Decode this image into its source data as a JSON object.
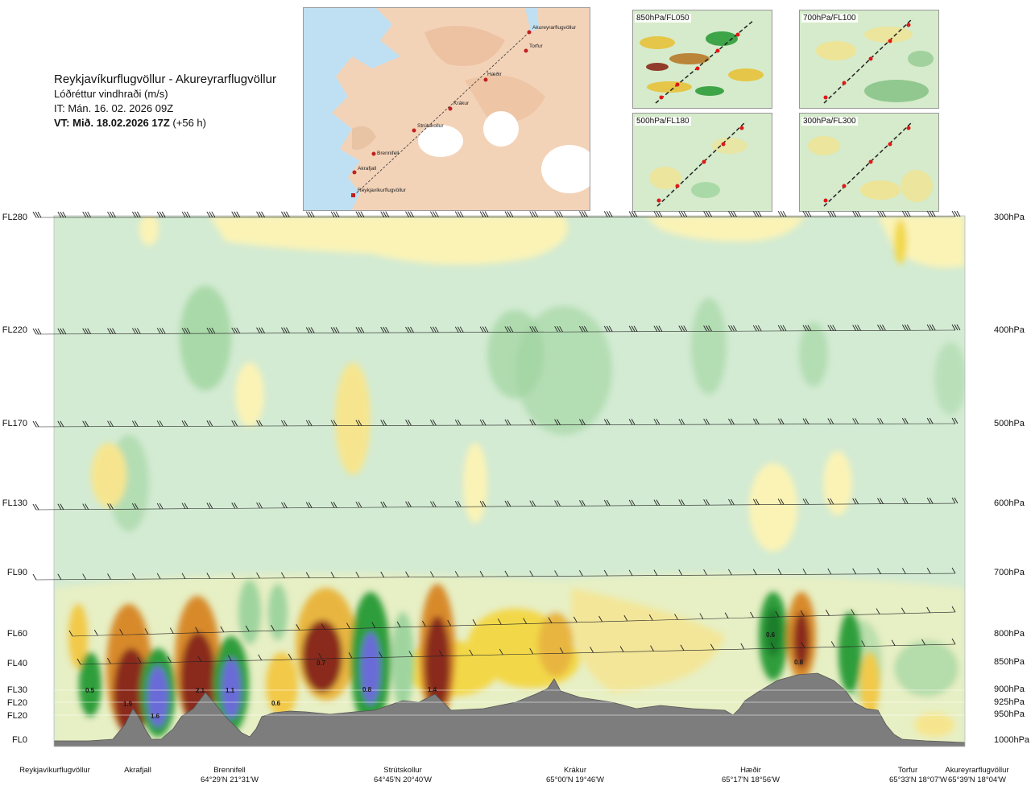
{
  "title": {
    "route": "Reykjavíkurflugvöllur - Akureyrarflugvöllur",
    "variable": "Lóðréttur vindhraði (m/s)",
    "issue": "IT: Mán. 16. 02. 2026 09Z",
    "valid": "VT: Mið. 18.02.2026 17Z",
    "valid_offset": "(+56 h)"
  },
  "map": {
    "waypoints": [
      "Akureyrarflugvöllur",
      "Torfur",
      "Hæðir",
      "Krákur",
      "Strútskollur",
      "Brennifell",
      "Akrafjall",
      "Reykjavíkurflugvöllur"
    ]
  },
  "panels": [
    {
      "label": "850hPa/FL050"
    },
    {
      "label": "700hPa/FL100"
    },
    {
      "label": "500hPa/FL180"
    },
    {
      "label": "300hPa/FL300"
    }
  ],
  "colors": {
    "green_light": "#d3ebd3",
    "green_mid": "#9fd49f",
    "green_dark": "#2e9d3a",
    "yellow_light": "#fbf3b6",
    "yellow": "#f2c94a",
    "orange": "#d88a2a",
    "brown": "#8a2a1a",
    "blue": "#6a6ad8",
    "terrain": "#7d7d7d"
  },
  "chart_data": {
    "type": "heatmap",
    "variable": "Lóðréttur vindhraði (m/s)",
    "flight_levels": [
      "FL280",
      "FL220",
      "FL170",
      "FL130",
      "FL90",
      "FL60",
      "FL40",
      "FL30",
      "FL20",
      "FL20",
      "FL0"
    ],
    "pressure_levels": [
      "300hPa",
      "400hPa",
      "500hPa",
      "600hPa",
      "700hPa",
      "800hPa",
      "850hPa",
      "900hPa",
      "925hPa",
      "950hPa",
      "1000hPa"
    ],
    "stations": [
      {
        "name": "Reykjavíkurflugvöllur",
        "coord": ""
      },
      {
        "name": "Akrafjall",
        "coord": ""
      },
      {
        "name": "Brennifell",
        "coord": "64°29'N 21°31'W"
      },
      {
        "name": "Strútskollur",
        "coord": "64°45'N 20°40'W"
      },
      {
        "name": "Krákur",
        "coord": "65°00'N 19°46'W"
      },
      {
        "name": "Hæðir",
        "coord": "65°17'N 18°56'W"
      },
      {
        "name": "Torfur",
        "coord": "65°33'N 18°07'W"
      },
      {
        "name": "Akureyrarflugvöllur",
        "coord": "65°39'N 18°04'W"
      }
    ],
    "annotations": [
      "0.5",
      "1.9",
      "1.6",
      "2.1",
      "1.1",
      "0.6",
      "0.7",
      "0.8",
      "1.4",
      "0.6",
      "0.8"
    ]
  }
}
